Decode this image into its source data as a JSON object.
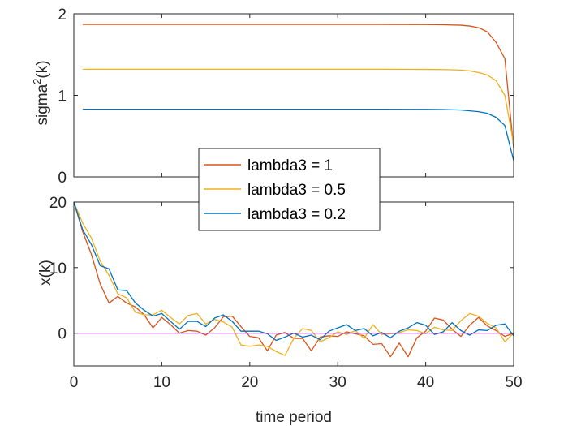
{
  "chart_data": [
    {
      "type": "line",
      "xlabel": "",
      "ylabel_base": "sigma",
      "ylabel_sup": "2",
      "ylabel_tail": "(k)",
      "xlim": [
        0,
        50
      ],
      "ylim": [
        0,
        2
      ],
      "xticks": [
        0,
        10,
        20,
        30,
        40,
        50
      ],
      "yticks": [
        0,
        1,
        2
      ],
      "xtick_labels_visible": false,
      "grid": false,
      "series": [
        {
          "name": "lambda3 = 1",
          "color": "#D95319",
          "x": [
            1,
            5,
            10,
            15,
            20,
            25,
            30,
            35,
            40,
            42,
            44,
            45,
            46,
            47,
            48,
            49,
            50
          ],
          "y": [
            1.87,
            1.87,
            1.87,
            1.87,
            1.87,
            1.87,
            1.87,
            1.87,
            1.868,
            1.866,
            1.86,
            1.85,
            1.83,
            1.78,
            1.65,
            1.45,
            0.35
          ]
        },
        {
          "name": "lambda3 = 0.5",
          "color": "#EDB120",
          "x": [
            1,
            5,
            10,
            15,
            20,
            25,
            30,
            35,
            40,
            42,
            44,
            45,
            46,
            47,
            48,
            49,
            50
          ],
          "y": [
            1.32,
            1.32,
            1.32,
            1.32,
            1.32,
            1.32,
            1.32,
            1.32,
            1.318,
            1.316,
            1.31,
            1.3,
            1.28,
            1.25,
            1.18,
            1.0,
            0.4
          ]
        },
        {
          "name": "lambda3 = 0.2",
          "color": "#0072BD",
          "x": [
            1,
            5,
            10,
            15,
            20,
            25,
            30,
            35,
            40,
            42,
            44,
            45,
            46,
            47,
            48,
            49,
            50
          ],
          "y": [
            0.83,
            0.83,
            0.83,
            0.83,
            0.83,
            0.83,
            0.83,
            0.83,
            0.828,
            0.826,
            0.82,
            0.81,
            0.8,
            0.78,
            0.73,
            0.63,
            0.2
          ]
        }
      ]
    },
    {
      "type": "line",
      "xlabel": "time period",
      "ylabel": "x(k)",
      "xlim": [
        0,
        50
      ],
      "ylim": [
        -5,
        20
      ],
      "xticks": [
        0,
        10,
        20,
        30,
        40,
        50
      ],
      "yticks": [
        0,
        10,
        20
      ],
      "grid": false,
      "series": [
        {
          "name": "lambda3 = 1",
          "color": "#D95319",
          "x": [
            0,
            1,
            2,
            3,
            4,
            5,
            6,
            7,
            8,
            9,
            10,
            11,
            12,
            13,
            14,
            15,
            16,
            17,
            18,
            19,
            20,
            21,
            22,
            23,
            24,
            25,
            26,
            27,
            28,
            29,
            30,
            31,
            32,
            33,
            34,
            35,
            36,
            37,
            38,
            39,
            40,
            41,
            42,
            43,
            44,
            45,
            46,
            47,
            48,
            49,
            50
          ],
          "y": [
            20,
            15.5,
            12,
            7.5,
            4.6,
            5.6,
            4.6,
            4,
            2.8,
            0.8,
            2.4,
            1.3,
            0,
            0.4,
            0.3,
            -0.3,
            0.8,
            2.5,
            2.6,
            1,
            -0.5,
            -0.7,
            -2.7,
            -0.3,
            0.1,
            -0.8,
            -0.8,
            -2.7,
            -0.6,
            -0.4,
            -0.5,
            0.2,
            -0.1,
            -0.4,
            -1.7,
            -1.6,
            -3.6,
            -1.5,
            -3.6,
            -0.7,
            0.3,
            2.3,
            2,
            0.6,
            -0.5,
            1.2,
            2.4,
            1.1,
            0.4,
            -0.5,
            0
          ]
        },
        {
          "name": "lambda3 = 0.5",
          "color": "#EDB120",
          "x": [
            0,
            1,
            2,
            3,
            4,
            5,
            6,
            7,
            8,
            9,
            10,
            11,
            12,
            13,
            14,
            15,
            16,
            17,
            18,
            19,
            20,
            21,
            22,
            23,
            24,
            25,
            26,
            27,
            28,
            29,
            30,
            31,
            32,
            33,
            34,
            35,
            36,
            37,
            38,
            39,
            40,
            41,
            42,
            43,
            44,
            45,
            46,
            47,
            48,
            49,
            50
          ],
          "y": [
            20,
            16.8,
            14.5,
            11,
            8.8,
            6,
            5.4,
            3.2,
            2.8,
            2.8,
            3.5,
            2.4,
            1.4,
            2.7,
            3,
            1.4,
            2.1,
            1.7,
            0.9,
            -1.8,
            -2,
            -1.8,
            -2,
            -2.8,
            -3.4,
            -0.8,
            0.7,
            0.4,
            -1.3,
            -0.7,
            0.2,
            -0.2,
            0.4,
            -0.8,
            1.3,
            -0.2,
            -0.1,
            0.1,
            0.5,
            0.4,
            -0.1,
            0.9,
            0.5,
            0.4,
            1.9,
            3,
            2.6,
            1.5,
            0.8,
            -1.3,
            0
          ]
        },
        {
          "name": "lambda3 = 0.2",
          "color": "#0072BD",
          "x": [
            0,
            1,
            2,
            3,
            4,
            5,
            6,
            7,
            8,
            9,
            10,
            11,
            12,
            13,
            14,
            15,
            16,
            17,
            18,
            19,
            20,
            21,
            22,
            23,
            24,
            25,
            26,
            27,
            28,
            29,
            30,
            31,
            32,
            33,
            34,
            35,
            36,
            37,
            38,
            39,
            40,
            41,
            42,
            43,
            44,
            45,
            46,
            47,
            48,
            49,
            50
          ],
          "y": [
            20,
            15.8,
            13.5,
            10.3,
            9.8,
            6.6,
            6.5,
            4.6,
            3.5,
            2.6,
            3,
            1.8,
            0.6,
            1.8,
            1.8,
            1,
            2.3,
            2.8,
            1.8,
            0.3,
            0.3,
            0.3,
            -0.1,
            -1.1,
            -0.6,
            0,
            -0.6,
            -0.3,
            -1,
            0.3,
            0.8,
            1.3,
            0.4,
            0.7,
            -0.4,
            0.1,
            -0.7,
            0.3,
            0.8,
            1.6,
            1.2,
            -0.2,
            0.2,
            1.6,
            0.4,
            -0.3,
            0.5,
            0.4,
            1.2,
            1.4,
            -0.4
          ]
        },
        {
          "name": "",
          "color": "#7E2F8E",
          "x": [
            0,
            50
          ],
          "y": [
            0,
            0
          ]
        }
      ]
    }
  ],
  "legend": {
    "placement": "center",
    "entries": [
      {
        "label": "lambda3 = 1",
        "color": "#D95319"
      },
      {
        "label": "lambda3 = 0.5",
        "color": "#EDB120"
      },
      {
        "label": "lambda3 = 0.2",
        "color": "#0072BD"
      }
    ]
  }
}
